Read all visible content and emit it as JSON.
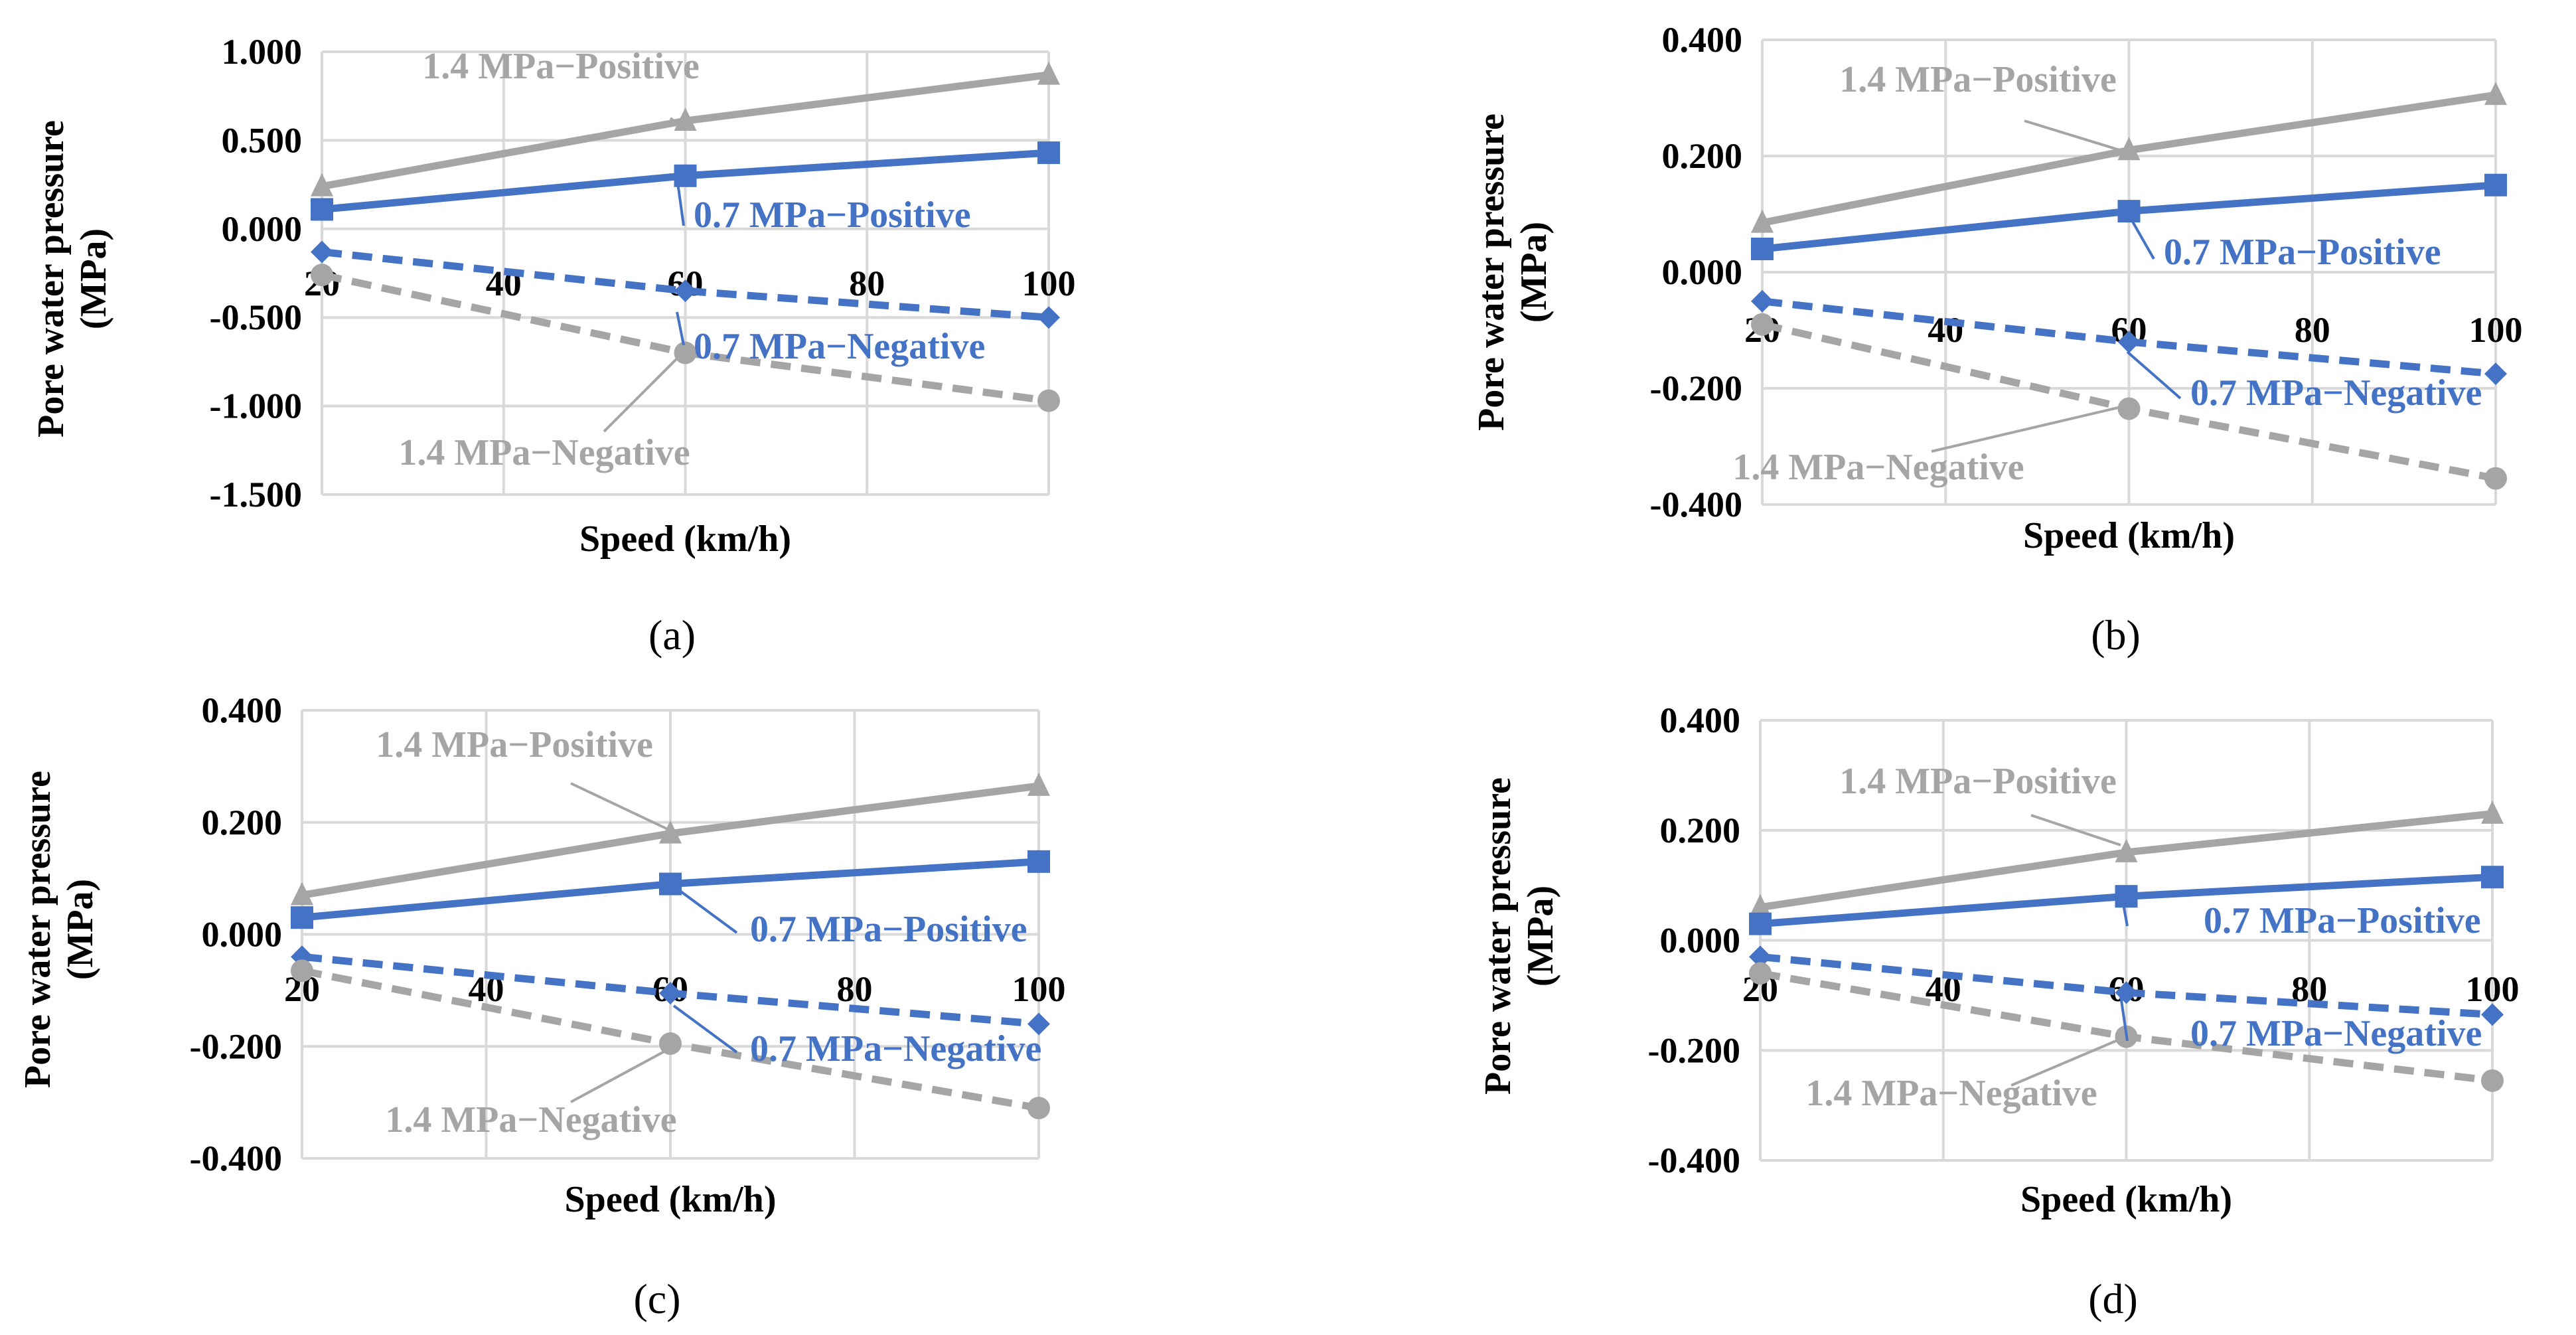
{
  "colors": {
    "grey": "#A5A5A5",
    "blue": "#4472C4",
    "grid": "#D9D9D9",
    "text": "#000000"
  },
  "chart_data": [
    {
      "panel": "a",
      "caption": "(a)",
      "type": "line",
      "xlabel": "Speed (km/h)",
      "ylabel": "Pore water pressure (MPa)",
      "ylabel_lines": [
        "Pore water pressure",
        "(MPa)"
      ],
      "x": [
        20,
        60,
        100
      ],
      "x_tick_labels": [
        "20",
        "40",
        "60",
        "80",
        "100"
      ],
      "ylim": [
        -1.5,
        1.0
      ],
      "y_ticks": [
        -1.5,
        -1.0,
        -0.5,
        0.0,
        0.5,
        1.0
      ],
      "y_tick_labels": [
        "-1.500",
        "-1.000",
        "-0.500",
        "0.000",
        "0.500",
        "1.000"
      ],
      "grid": true,
      "series": [
        {
          "name": "1.4 MPa−Positive",
          "values": [
            0.24,
            0.61,
            0.87
          ],
          "color": "grey",
          "style": "solid",
          "marker": "triangle"
        },
        {
          "name": "0.7 MPa−Positive",
          "values": [
            0.11,
            0.3,
            0.43
          ],
          "color": "blue",
          "style": "solid",
          "marker": "square"
        },
        {
          "name": "0.7 MPa−Negative",
          "values": [
            -0.13,
            -0.35,
            -0.5
          ],
          "color": "blue",
          "style": "dashed",
          "marker": "diamond"
        },
        {
          "name": "1.4 MPa−Negative",
          "values": [
            -0.26,
            -0.7,
            -0.97
          ],
          "color": "grey",
          "style": "dashed",
          "marker": "circle"
        }
      ]
    },
    {
      "panel": "b",
      "caption": "(b)",
      "type": "line",
      "xlabel": "Speed (km/h)",
      "ylabel": "Pore water pressure (MPa)",
      "ylabel_lines": [
        "Pore water pressure",
        "(MPa)"
      ],
      "x": [
        20,
        60,
        100
      ],
      "x_tick_labels": [
        "20",
        "40",
        "60",
        "80",
        "100"
      ],
      "ylim": [
        -0.4,
        0.4
      ],
      "y_ticks": [
        -0.4,
        -0.2,
        0.0,
        0.2,
        0.4
      ],
      "y_tick_labels": [
        "-0.400",
        "-0.200",
        "0.000",
        "0.200",
        "0.400"
      ],
      "grid": true,
      "series": [
        {
          "name": "1.4 MPa−Positive",
          "values": [
            0.085,
            0.21,
            0.305
          ],
          "color": "grey",
          "style": "solid",
          "marker": "triangle"
        },
        {
          "name": "0.7 MPa−Positive",
          "values": [
            0.04,
            0.105,
            0.15
          ],
          "color": "blue",
          "style": "solid",
          "marker": "square"
        },
        {
          "name": "0.7 MPa−Negative",
          "values": [
            -0.05,
            -0.12,
            -0.175
          ],
          "color": "blue",
          "style": "dashed",
          "marker": "diamond"
        },
        {
          "name": "1.4 MPa−Negative",
          "values": [
            -0.09,
            -0.235,
            -0.355
          ],
          "color": "grey",
          "style": "dashed",
          "marker": "circle"
        }
      ]
    },
    {
      "panel": "c",
      "caption": "(c)",
      "type": "line",
      "xlabel": "Speed (km/h)",
      "ylabel": "Pore water pressure (MPa)",
      "ylabel_lines": [
        "Pore water pressure",
        "(MPa)"
      ],
      "x": [
        20,
        60,
        100
      ],
      "x_tick_labels": [
        "20",
        "40",
        "60",
        "80",
        "100"
      ],
      "ylim": [
        -0.4,
        0.4
      ],
      "y_ticks": [
        -0.4,
        -0.2,
        0.0,
        0.2,
        0.4
      ],
      "y_tick_labels": [
        "-0.400",
        "-0.200",
        "0.000",
        "0.200",
        "0.400"
      ],
      "grid": true,
      "series": [
        {
          "name": "1.4 MPa−Positive",
          "values": [
            0.07,
            0.18,
            0.265
          ],
          "color": "grey",
          "style": "solid",
          "marker": "triangle"
        },
        {
          "name": "0.7 MPa−Positive",
          "values": [
            0.03,
            0.09,
            0.13
          ],
          "color": "blue",
          "style": "solid",
          "marker": "square"
        },
        {
          "name": "0.7 MPa−Negative",
          "values": [
            -0.04,
            -0.105,
            -0.16
          ],
          "color": "blue",
          "style": "dashed",
          "marker": "diamond"
        },
        {
          "name": "1.4 MPa−Negative",
          "values": [
            -0.065,
            -0.195,
            -0.31
          ],
          "color": "grey",
          "style": "dashed",
          "marker": "circle"
        }
      ]
    },
    {
      "panel": "d",
      "caption": "(d)",
      "type": "line",
      "xlabel": "Speed (km/h)",
      "ylabel": "Pore water pressure (MPa)",
      "ylabel_lines": [
        "Pore water pressure",
        "(MPa)"
      ],
      "x": [
        20,
        60,
        100
      ],
      "x_tick_labels": [
        "20",
        "40",
        "60",
        "80",
        "100"
      ],
      "ylim": [
        -0.4,
        0.4
      ],
      "y_ticks": [
        -0.4,
        -0.2,
        0.0,
        0.2,
        0.4
      ],
      "y_tick_labels": [
        "-0.400",
        "-0.200",
        "0.000",
        "0.200",
        "0.400"
      ],
      "grid": true,
      "series": [
        {
          "name": "1.4 MPa−Positive",
          "values": [
            0.06,
            0.16,
            0.23
          ],
          "color": "grey",
          "style": "solid",
          "marker": "triangle"
        },
        {
          "name": "0.7 MPa−Positive",
          "values": [
            0.03,
            0.08,
            0.115
          ],
          "color": "blue",
          "style": "solid",
          "marker": "square"
        },
        {
          "name": "0.7 MPa−Negative",
          "values": [
            -0.03,
            -0.095,
            -0.135
          ],
          "color": "blue",
          "style": "dashed",
          "marker": "diamond"
        },
        {
          "name": "1.4 MPa−Negative",
          "values": [
            -0.06,
            -0.175,
            -0.255
          ],
          "color": "grey",
          "style": "dashed",
          "marker": "circle"
        }
      ]
    }
  ]
}
